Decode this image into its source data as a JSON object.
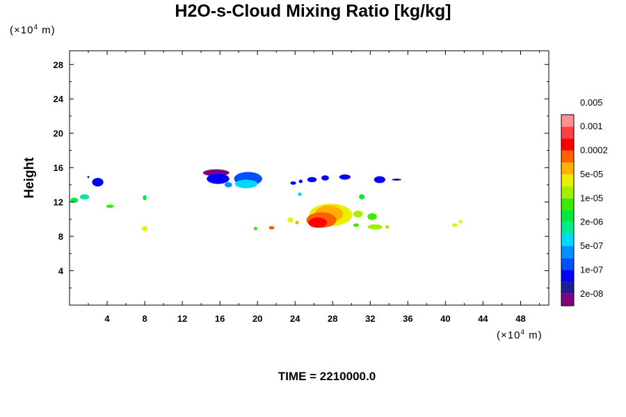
{
  "chart_data": {
    "type": "heatmap",
    "title": "H2O-s-Cloud Mixing Ratio [kg/kg]",
    "xlabel": "",
    "ylabel": "Height",
    "x_unit": "(×10",
    "x_unit_exp": "4",
    "x_unit_tail": " m)",
    "y_unit": "(×10",
    "y_unit_exp": "4",
    "y_unit_tail": " m)",
    "xlim": [
      0,
      51
    ],
    "ylim": [
      0,
      29.6
    ],
    "x_ticks": [
      "4",
      "8",
      "12",
      "16",
      "20",
      "24",
      "28",
      "32",
      "36",
      "40",
      "44",
      "48"
    ],
    "y_ticks": [
      "4",
      "8",
      "12",
      "16",
      "20",
      "24",
      "28"
    ],
    "colorbar": {
      "colors": [
        "#800080",
        "#1e1e8c",
        "#0000ff",
        "#0050ff",
        "#0090ff",
        "#00d8ff",
        "#00e890",
        "#00e840",
        "#40e800",
        "#a0f000",
        "#e8f000",
        "#ffb000",
        "#ff6000",
        "#ff0000",
        "#ff4040",
        "#ff9090"
      ],
      "labels": [
        "2e-08",
        "1e-07",
        "5e-07",
        "2e-06",
        "1e-05",
        "5e-05",
        "0.0002",
        "0.001",
        "0.005"
      ]
    },
    "cloud_regions": [
      {
        "x": 3.0,
        "y": 14.3,
        "rx": 0.6,
        "ry": 0.5,
        "level": 2
      },
      {
        "x": 2.0,
        "y": 14.9,
        "rx": 0.1,
        "ry": 0.1,
        "level": 1
      },
      {
        "x": 0.5,
        "y": 12.2,
        "rx": 0.4,
        "ry": 0.3,
        "level": 7
      },
      {
        "x": 1.6,
        "y": 12.6,
        "rx": 0.5,
        "ry": 0.3,
        "level": 6
      },
      {
        "x": 4.3,
        "y": 11.5,
        "rx": 0.4,
        "ry": 0.2,
        "level": 8
      },
      {
        "x": 8.0,
        "y": 12.5,
        "rx": 0.2,
        "ry": 0.3,
        "level": 7
      },
      {
        "x": 8.0,
        "y": 8.9,
        "rx": 0.3,
        "ry": 0.3,
        "level": 10
      },
      {
        "x": 15.6,
        "y": 15.4,
        "rx": 1.4,
        "ry": 0.4,
        "level": 0
      },
      {
        "x": 15.8,
        "y": 14.7,
        "rx": 1.2,
        "ry": 0.6,
        "level": 2
      },
      {
        "x": 19.0,
        "y": 14.7,
        "rx": 1.5,
        "ry": 0.8,
        "level": 3
      },
      {
        "x": 18.8,
        "y": 14.1,
        "rx": 1.2,
        "ry": 0.5,
        "level": 5
      },
      {
        "x": 16.9,
        "y": 14.0,
        "rx": 0.4,
        "ry": 0.3,
        "level": 4
      },
      {
        "x": 19.8,
        "y": 8.9,
        "rx": 0.2,
        "ry": 0.2,
        "level": 8
      },
      {
        "x": 21.5,
        "y": 9.0,
        "rx": 0.3,
        "ry": 0.2,
        "level": 12
      },
      {
        "x": 23.8,
        "y": 14.2,
        "rx": 0.3,
        "ry": 0.2,
        "level": 2
      },
      {
        "x": 24.6,
        "y": 14.4,
        "rx": 0.2,
        "ry": 0.2,
        "level": 2
      },
      {
        "x": 25.8,
        "y": 14.6,
        "rx": 0.5,
        "ry": 0.3,
        "level": 2
      },
      {
        "x": 27.2,
        "y": 14.8,
        "rx": 0.4,
        "ry": 0.3,
        "level": 2
      },
      {
        "x": 29.3,
        "y": 14.9,
        "rx": 0.6,
        "ry": 0.3,
        "level": 2
      },
      {
        "x": 33.0,
        "y": 14.6,
        "rx": 0.6,
        "ry": 0.4,
        "level": 2
      },
      {
        "x": 34.8,
        "y": 14.6,
        "rx": 0.5,
        "ry": 0.1,
        "level": 1
      },
      {
        "x": 24.5,
        "y": 12.9,
        "rx": 0.2,
        "ry": 0.2,
        "level": 5
      },
      {
        "x": 31.1,
        "y": 12.6,
        "rx": 0.3,
        "ry": 0.3,
        "level": 7
      },
      {
        "x": 27.8,
        "y": 10.5,
        "rx": 2.3,
        "ry": 1.3,
        "level": 10
      },
      {
        "x": 27.6,
        "y": 10.6,
        "rx": 1.5,
        "ry": 1.0,
        "level": 11
      },
      {
        "x": 26.8,
        "y": 9.9,
        "rx": 1.6,
        "ry": 0.9,
        "level": 12
      },
      {
        "x": 26.4,
        "y": 9.6,
        "rx": 1.0,
        "ry": 0.6,
        "level": 13
      },
      {
        "x": 23.5,
        "y": 9.9,
        "rx": 0.3,
        "ry": 0.3,
        "level": 10
      },
      {
        "x": 24.2,
        "y": 9.6,
        "rx": 0.2,
        "ry": 0.2,
        "level": 11
      },
      {
        "x": 30.7,
        "y": 10.6,
        "rx": 0.5,
        "ry": 0.4,
        "level": 9
      },
      {
        "x": 32.2,
        "y": 10.3,
        "rx": 0.5,
        "ry": 0.4,
        "level": 8
      },
      {
        "x": 30.5,
        "y": 9.3,
        "rx": 0.3,
        "ry": 0.2,
        "level": 8
      },
      {
        "x": 32.5,
        "y": 9.1,
        "rx": 0.8,
        "ry": 0.3,
        "level": 9
      },
      {
        "x": 33.8,
        "y": 9.1,
        "rx": 0.2,
        "ry": 0.2,
        "level": 9
      },
      {
        "x": 41.0,
        "y": 9.3,
        "rx": 0.3,
        "ry": 0.2,
        "level": 10
      },
      {
        "x": 41.6,
        "y": 9.7,
        "rx": 0.2,
        "ry": 0.2,
        "level": 10
      }
    ]
  },
  "footer": {
    "time": "TIME = 2210000.0"
  }
}
